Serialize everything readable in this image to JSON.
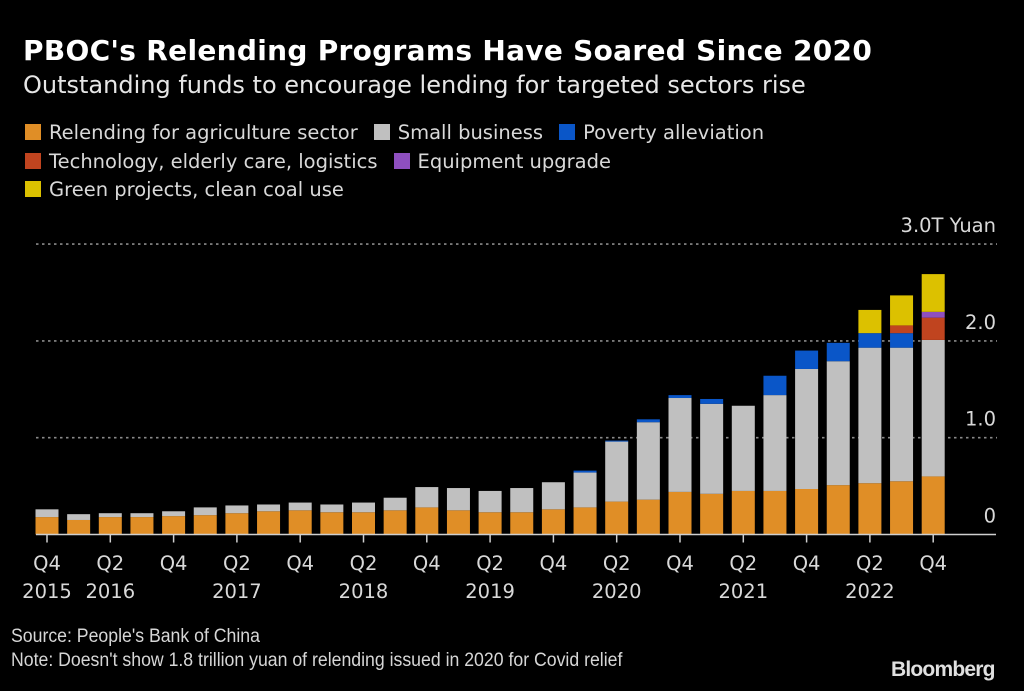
{
  "header": {
    "title": "PBOC's Relending Programs Have Soared Since 2020",
    "subtitle": "Outstanding funds to encourage lending for targeted sectors rise"
  },
  "legend": {
    "rows": [
      [
        {
          "key": "agriculture",
          "label": "Relending for agriculture sector",
          "color": "#e08e26"
        },
        {
          "key": "small_business",
          "label": "Small business",
          "color": "#c0c0c0"
        },
        {
          "key": "poverty",
          "label": "Poverty alleviation",
          "color": "#0a56c8"
        }
      ],
      [
        {
          "key": "tech",
          "label": "Technology, elderly care, logistics",
          "color": "#c0441f"
        },
        {
          "key": "equipment",
          "label": "Equipment upgrade",
          "color": "#8e4fbf"
        }
      ],
      [
        {
          "key": "green",
          "label": "Green projects, clean coal use",
          "color": "#dcc100"
        }
      ]
    ]
  },
  "footer": {
    "source": "Source: People's Bank of China",
    "note": "Note: Doesn't show 1.8 trillion yuan of relending issued in 2020 for Covid relief",
    "brand": "Bloomberg"
  },
  "chart_data": {
    "type": "bar",
    "stacked": true,
    "title": "PBOC's Relending Programs Have Soared Since 2020",
    "subtitle": "Outstanding funds to encourage lending for targeted sectors rise",
    "xlabel": "",
    "ylabel": "",
    "y_unit_label": "3.0T Yuan",
    "ylim": [
      0,
      3.0
    ],
    "y_ticks": [
      {
        "value": 0,
        "label": "0"
      },
      {
        "value": 1.0,
        "label": "1.0"
      },
      {
        "value": 2.0,
        "label": "2.0"
      },
      {
        "value": 3.0,
        "label": "3.0T Yuan"
      }
    ],
    "y_axis_side": "right",
    "grid": true,
    "legend_position": "top-left",
    "categories": [
      "Q4 2015",
      "Q1 2016",
      "Q2 2016",
      "Q3 2016",
      "Q4 2016",
      "Q1 2017",
      "Q2 2017",
      "Q3 2017",
      "Q4 2017",
      "Q1 2018",
      "Q2 2018",
      "Q3 2018",
      "Q4 2018",
      "Q1 2019",
      "Q2 2019",
      "Q3 2019",
      "Q4 2019",
      "Q1 2020",
      "Q2 2020",
      "Q3 2020",
      "Q4 2020",
      "Q1 2021",
      "Q2 2021",
      "Q3 2021",
      "Q4 2021",
      "Q1 2022",
      "Q2 2022",
      "Q3 2022",
      "Q4 2022"
    ],
    "x_tick_labels": [
      {
        "index": 0,
        "quarter": "Q4",
        "year": "2015"
      },
      {
        "index": 2,
        "quarter": "Q2",
        "year": "2016"
      },
      {
        "index": 4,
        "quarter": "Q4",
        "year": ""
      },
      {
        "index": 6,
        "quarter": "Q2",
        "year": "2017"
      },
      {
        "index": 8,
        "quarter": "Q4",
        "year": ""
      },
      {
        "index": 10,
        "quarter": "Q2",
        "year": "2018"
      },
      {
        "index": 12,
        "quarter": "Q4",
        "year": ""
      },
      {
        "index": 14,
        "quarter": "Q2",
        "year": "2019"
      },
      {
        "index": 16,
        "quarter": "Q4",
        "year": ""
      },
      {
        "index": 18,
        "quarter": "Q2",
        "year": "2020"
      },
      {
        "index": 20,
        "quarter": "Q4",
        "year": ""
      },
      {
        "index": 22,
        "quarter": "Q2",
        "year": "2021"
      },
      {
        "index": 24,
        "quarter": "Q4",
        "year": ""
      },
      {
        "index": 26,
        "quarter": "Q2",
        "year": "2022"
      },
      {
        "index": 28,
        "quarter": "Q4",
        "year": ""
      }
    ],
    "series": [
      {
        "name": "Relending for agriculture sector",
        "color": "#e08e26",
        "values": [
          0.18,
          0.15,
          0.18,
          0.18,
          0.19,
          0.2,
          0.22,
          0.24,
          0.25,
          0.23,
          0.23,
          0.25,
          0.28,
          0.25,
          0.23,
          0.23,
          0.26,
          0.28,
          0.34,
          0.36,
          0.44,
          0.42,
          0.45,
          0.45,
          0.47,
          0.51,
          0.53,
          0.55,
          0.6
        ]
      },
      {
        "name": "Small business",
        "color": "#c0c0c0",
        "values": [
          0.08,
          0.06,
          0.04,
          0.04,
          0.05,
          0.08,
          0.08,
          0.07,
          0.08,
          0.08,
          0.1,
          0.13,
          0.21,
          0.23,
          0.22,
          0.25,
          0.28,
          0.36,
          0.62,
          0.8,
          0.97,
          0.93,
          0.88,
          0.99,
          1.24,
          1.28,
          1.4,
          1.38,
          1.41
        ]
      },
      {
        "name": "Poverty alleviation",
        "color": "#0a56c8",
        "values": [
          0,
          0,
          0,
          0,
          0,
          0,
          0,
          0,
          0,
          0,
          0,
          0,
          0,
          0,
          0,
          0,
          0,
          0.02,
          0.01,
          0.03,
          0.03,
          0.05,
          0,
          0.2,
          0.19,
          0.19,
          0.15,
          0.15,
          0
        ]
      },
      {
        "name": "Technology, elderly care, logistics",
        "color": "#c0441f",
        "values": [
          0,
          0,
          0,
          0,
          0,
          0,
          0,
          0,
          0,
          0,
          0,
          0,
          0,
          0,
          0,
          0,
          0,
          0,
          0,
          0,
          0,
          0,
          0,
          0,
          0,
          0,
          0,
          0.08,
          0.23
        ]
      },
      {
        "name": "Equipment upgrade",
        "color": "#8e4fbf",
        "values": [
          0,
          0,
          0,
          0,
          0,
          0,
          0,
          0,
          0,
          0,
          0,
          0,
          0,
          0,
          0,
          0,
          0,
          0,
          0,
          0,
          0,
          0,
          0,
          0,
          0,
          0,
          0,
          0,
          0.06
        ]
      },
      {
        "name": "Green projects, clean coal use",
        "color": "#dcc100",
        "values": [
          0,
          0,
          0,
          0,
          0,
          0,
          0,
          0,
          0,
          0,
          0,
          0,
          0,
          0,
          0,
          0,
          0,
          0,
          0,
          0,
          0,
          0,
          0,
          0,
          0,
          0,
          0.24,
          0.31,
          0.39
        ]
      }
    ],
    "source": "Source: People's Bank of China",
    "note": "Note: Doesn't show 1.8 trillion yuan of relending issued in 2020 for Covid relief"
  }
}
